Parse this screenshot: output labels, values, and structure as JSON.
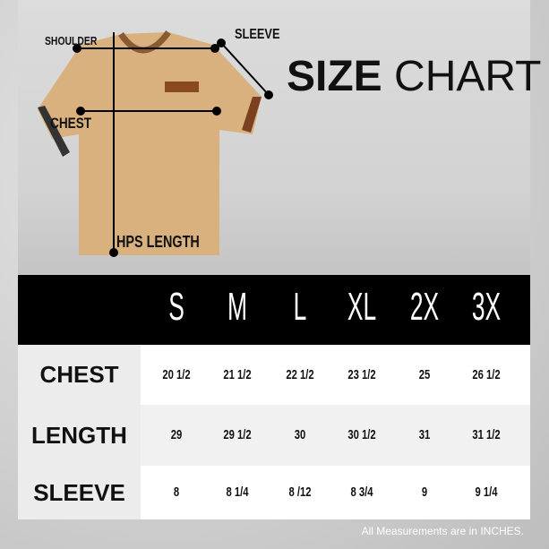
{
  "diagram": {
    "labels": {
      "shoulder": "SHOULDER",
      "sleeve": "SLEEVE",
      "chest": "CHEST",
      "length": "HPS LENGTH"
    }
  },
  "title": {
    "bold": "SIZE",
    "light": "CHART"
  },
  "table": {
    "sizes": [
      "S",
      "M",
      "L",
      "XL",
      "2X",
      "3X"
    ],
    "rows": [
      {
        "label": "CHEST",
        "values": [
          "20 1/2",
          "21 1/2",
          "22 1/2",
          "23 1/2",
          "25",
          "26 1/2"
        ]
      },
      {
        "label": "LENGTH",
        "values": [
          "29",
          "29 1/2",
          "30",
          "30 1/2",
          "31",
          "31 1/2"
        ]
      },
      {
        "label": "SLEEVE",
        "values": [
          "8",
          "8 1/4",
          "8 /12",
          "8 3/4",
          "9",
          "9 1/4"
        ]
      }
    ]
  },
  "footnote": "All Measurements are in INCHES.",
  "colors": {
    "shirt": "#d8b17f",
    "header_band": "#000000"
  }
}
